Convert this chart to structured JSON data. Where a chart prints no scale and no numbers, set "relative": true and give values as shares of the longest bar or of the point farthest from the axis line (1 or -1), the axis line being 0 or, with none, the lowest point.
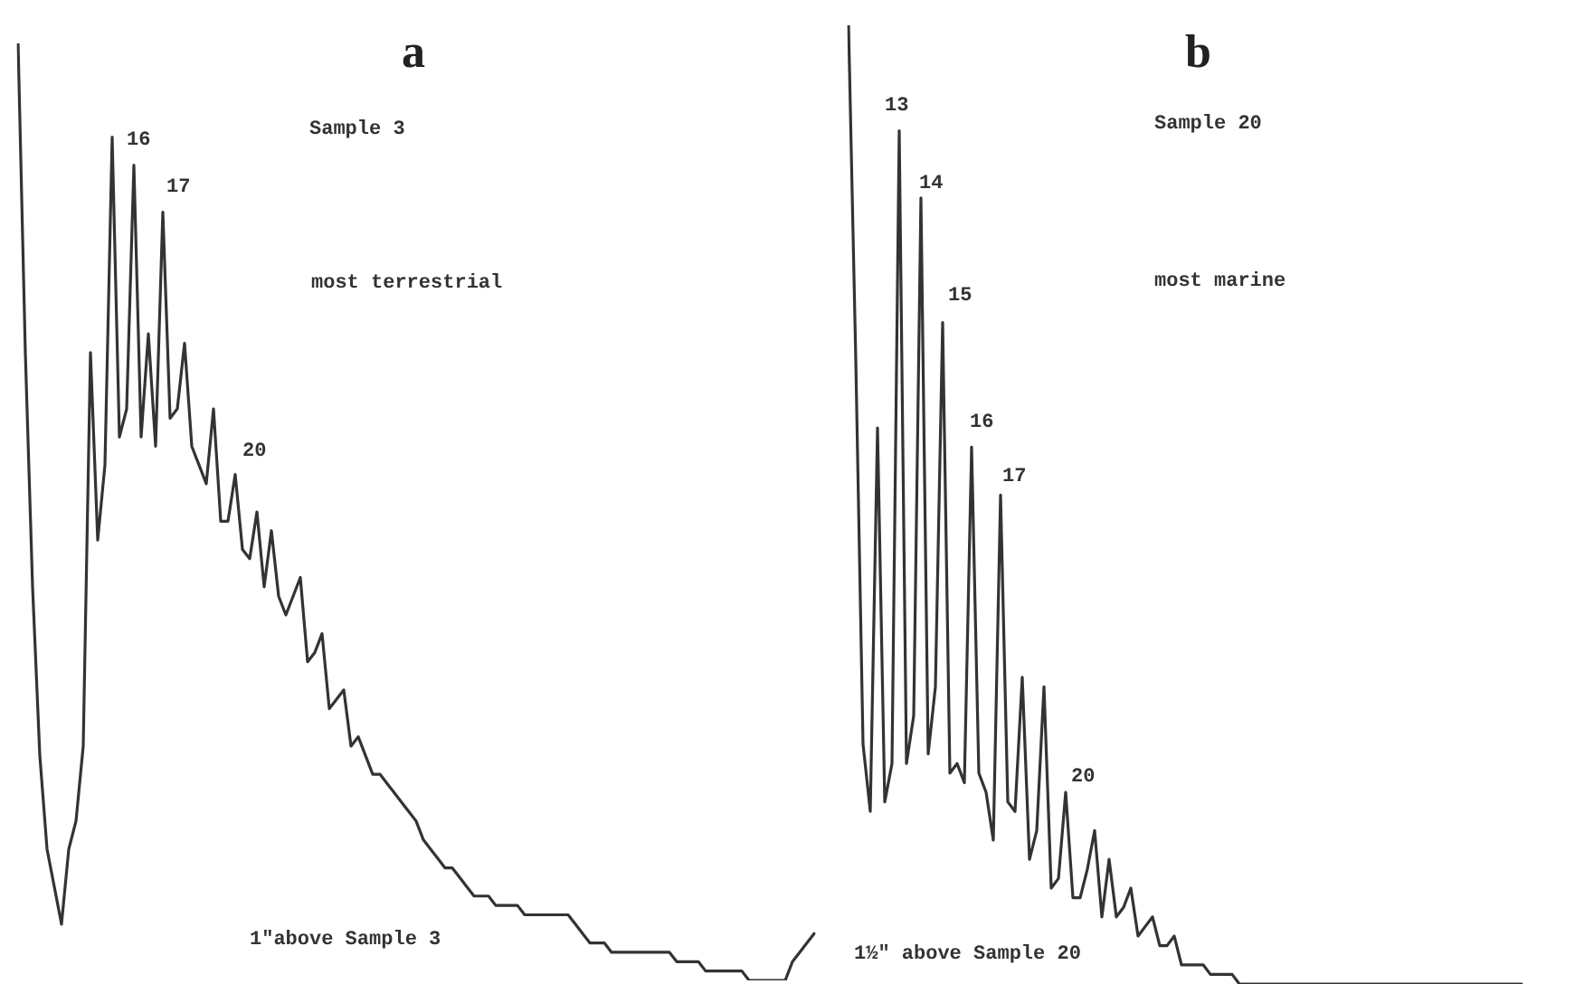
{
  "chart_data": [
    {
      "type": "line",
      "title": "a",
      "relative": true,
      "tick_labels": false,
      "marker": "none",
      "color": "#333333",
      "annotations": [
        "Sample 3",
        "most terrestrial",
        "1\"above Sample 3",
        "16",
        "17",
        "20"
      ],
      "categories": [
        null,
        null,
        null,
        null,
        null,
        null,
        null,
        null,
        null,
        null,
        null,
        null,
        null,
        null,
        null,
        null,
        null,
        null,
        null,
        null,
        null,
        null,
        null,
        null,
        null,
        null,
        null,
        null,
        null,
        null,
        null,
        null,
        null,
        null,
        null,
        null,
        null,
        null,
        null,
        null,
        null,
        null,
        null,
        null,
        null,
        null,
        null,
        null,
        null,
        null,
        null,
        null,
        null,
        null,
        null,
        null,
        null,
        null,
        null,
        null,
        null,
        null,
        null,
        null,
        null,
        null,
        null,
        null,
        null,
        null,
        null,
        null,
        null,
        null,
        null,
        null,
        null,
        null,
        null,
        null,
        null,
        null,
        null,
        null,
        null,
        null,
        null,
        null,
        null,
        null,
        null,
        null,
        null,
        null,
        null,
        null,
        null,
        null,
        null,
        null,
        null,
        null,
        null,
        null,
        null,
        null,
        null,
        null,
        null,
        null,
        null
      ],
      "values": [
        1.0,
        0.67,
        0.42,
        0.24,
        0.14,
        0.1,
        0.06,
        0.14,
        0.17,
        0.25,
        0.67,
        0.47,
        0.55,
        0.9,
        0.58,
        0.61,
        0.87,
        0.58,
        0.69,
        0.57,
        0.82,
        0.6,
        0.61,
        0.68,
        0.57,
        0.55,
        0.53,
        0.61,
        0.49,
        0.49,
        0.54,
        0.46,
        0.45,
        0.5,
        0.42,
        0.48,
        0.41,
        0.39,
        0.41,
        0.43,
        0.34,
        0.35,
        0.37,
        0.29,
        0.3,
        0.31,
        0.25,
        0.26,
        0.24,
        0.22,
        0.22,
        0.21,
        0.2,
        0.19,
        0.18,
        0.17,
        0.15,
        0.14,
        0.13,
        0.12,
        0.12,
        0.11,
        0.1,
        0.09,
        0.09,
        0.09,
        0.08,
        0.08,
        0.08,
        0.08,
        0.07,
        0.07,
        0.07,
        0.07,
        0.07,
        0.07,
        0.07,
        0.06,
        0.05,
        0.04,
        0.04,
        0.04,
        0.03,
        0.03,
        0.03,
        0.03,
        0.03,
        0.03,
        0.03,
        0.03,
        0.03,
        0.02,
        0.02,
        0.02,
        0.02,
        0.01,
        0.01,
        0.01,
        0.01,
        0.01,
        0.01,
        0,
        0,
        0,
        0,
        0,
        0,
        0.02,
        0.03,
        0.04,
        0.05
      ]
    },
    {
      "type": "line",
      "title": "b",
      "relative": true,
      "tick_labels": false,
      "marker": "none",
      "color": "#333333",
      "annotations": [
        "Sample 20",
        "most marine",
        "1½\" above Sample 20",
        "13",
        "14",
        "15",
        "16",
        "17",
        "20"
      ],
      "categories": [
        null,
        null,
        null,
        null,
        null,
        null,
        null,
        null,
        null,
        null,
        null,
        null,
        null,
        null,
        null,
        null,
        null,
        null,
        null,
        null,
        null,
        null,
        null,
        null,
        null,
        null,
        null,
        null,
        null,
        null,
        null,
        null,
        null,
        null,
        null,
        null,
        null,
        null,
        null,
        null,
        null,
        null,
        null,
        null,
        null,
        null,
        null,
        null,
        null,
        null,
        null,
        null,
        null,
        null,
        null,
        null,
        null,
        null,
        null,
        null,
        null,
        null,
        null,
        null,
        null,
        null,
        null,
        null,
        null,
        null,
        null,
        null,
        null,
        null,
        null,
        null,
        null,
        null,
        null,
        null,
        null,
        null,
        null,
        null,
        null,
        null,
        null,
        null,
        null,
        null,
        null,
        null,
        null,
        null
      ],
      "values": [
        1.0,
        0.65,
        0.25,
        0.18,
        0.58,
        0.19,
        0.23,
        0.89,
        0.23,
        0.28,
        0.82,
        0.24,
        0.31,
        0.69,
        0.22,
        0.23,
        0.21,
        0.56,
        0.22,
        0.2,
        0.15,
        0.51,
        0.19,
        0.18,
        0.32,
        0.13,
        0.16,
        0.31,
        0.1,
        0.11,
        0.2,
        0.09,
        0.09,
        0.12,
        0.16,
        0.07,
        0.13,
        0.07,
        0.08,
        0.1,
        0.05,
        0.06,
        0.07,
        0.04,
        0.04,
        0.05,
        0.02,
        0.02,
        0.02,
        0.02,
        0.01,
        0.01,
        0.01,
        0.01,
        0,
        0,
        0,
        0,
        0,
        0,
        0,
        0,
        0,
        0,
        0,
        0,
        0,
        0,
        0,
        0,
        0,
        0,
        0,
        0,
        0,
        0,
        0,
        0,
        0,
        0,
        0,
        0,
        0,
        0,
        0,
        0,
        0,
        0,
        0,
        0,
        0,
        0,
        0,
        0
      ]
    }
  ]
}
